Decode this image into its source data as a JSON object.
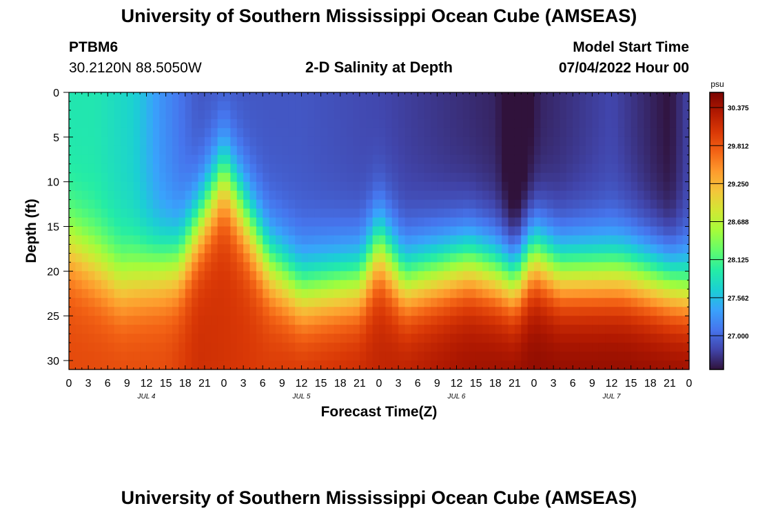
{
  "header": {
    "title": "University of Southern Mississippi Ocean Cube (AMSEAS)",
    "station_id": "PTBM6",
    "station_coords": "30.2120N  88.5050W",
    "plot_title": "2-D Salinity at Depth",
    "model_start_label": "Model Start Time",
    "model_start_value": "07/04/2022 Hour 00"
  },
  "footer": {
    "title": "University of Southern Mississippi Ocean Cube (AMSEAS)"
  },
  "chart_data": {
    "type": "heatmap",
    "title": "2-D Salinity at Depth",
    "xlabel": "Forecast Time(Z)",
    "ylabel": "Depth (ft)",
    "x_hours_range": [
      0,
      96
    ],
    "y_depth_range_ft": [
      0,
      31
    ],
    "x_tick_labels": [
      "0",
      "3",
      "6",
      "9",
      "12",
      "15",
      "18",
      "21",
      "0",
      "3",
      "6",
      "9",
      "12",
      "15",
      "18",
      "21",
      "0",
      "3",
      "6",
      "9",
      "12",
      "15",
      "18",
      "21",
      "0",
      "3",
      "6",
      "9",
      "12",
      "15",
      "18",
      "21",
      "0"
    ],
    "y_tick_labels": [
      "0",
      "5",
      "10",
      "15",
      "20",
      "25",
      "30"
    ],
    "day_labels": [
      {
        "label": "JUL 4",
        "hour": 12
      },
      {
        "label": "JUL 5",
        "hour": 36
      },
      {
        "label": "JUL 6",
        "hour": 60
      },
      {
        "label": "JUL 7",
        "hour": 84
      }
    ],
    "colorbar": {
      "unit": "psu",
      "min": 26.5,
      "max": 30.6,
      "tick_labels": [
        "30.375",
        "29.812",
        "29.250",
        "28.688",
        "28.125",
        "27.562",
        "27.000"
      ],
      "tick_values": [
        30.375,
        29.812,
        29.25,
        28.688,
        28.125,
        27.562,
        27.0
      ],
      "colors": [
        "#30123b",
        "#4145ab",
        "#4675ed",
        "#39a2fc",
        "#1bcfd4",
        "#24eca6",
        "#61fc6c",
        "#a4fc3b",
        "#d1e834",
        "#f3c63a",
        "#fe9b2d",
        "#f36315",
        "#d93806",
        "#b11901",
        "#7a0402"
      ]
    },
    "surface_salinity_psu": [
      {
        "hour": 0,
        "value": 27.9
      },
      {
        "hour": 4,
        "value": 27.9
      },
      {
        "hour": 10,
        "value": 27.7
      },
      {
        "hour": 14,
        "value": 27.3
      },
      {
        "hour": 20,
        "value": 26.9
      },
      {
        "hour": 36,
        "value": 26.9
      },
      {
        "hour": 48,
        "value": 26.8
      },
      {
        "hour": 66,
        "value": 26.6
      },
      {
        "hour": 69,
        "value": 26.3
      },
      {
        "hour": 73,
        "value": 26.6
      },
      {
        "hour": 84,
        "value": 26.8
      },
      {
        "hour": 93,
        "value": 26.5
      },
      {
        "hour": 96,
        "value": 26.8
      }
    ],
    "halocline_depth_ft": [
      {
        "hour": 0,
        "value": 17
      },
      {
        "hour": 8,
        "value": 21
      },
      {
        "hour": 17,
        "value": 19
      },
      {
        "hour": 24,
        "value": 9
      },
      {
        "hour": 31,
        "value": 19
      },
      {
        "hour": 36,
        "value": 22
      },
      {
        "hour": 45,
        "value": 21
      },
      {
        "hour": 48,
        "value": 17
      },
      {
        "hour": 52,
        "value": 21
      },
      {
        "hour": 57,
        "value": 20
      },
      {
        "hour": 62,
        "value": 19
      },
      {
        "hour": 66,
        "value": 20
      },
      {
        "hour": 69,
        "value": 21
      },
      {
        "hour": 72,
        "value": 18
      },
      {
        "hour": 76,
        "value": 20
      },
      {
        "hour": 86,
        "value": 20
      },
      {
        "hour": 96,
        "value": 22
      }
    ],
    "bottom_salinity_psu": [
      {
        "hour": 0,
        "value": 29.9
      },
      {
        "hour": 15,
        "value": 29.9
      },
      {
        "hour": 20,
        "value": 30.1
      },
      {
        "hour": 30,
        "value": 30.0
      },
      {
        "hour": 48,
        "value": 30.2
      },
      {
        "hour": 60,
        "value": 30.4
      },
      {
        "hour": 72,
        "value": 30.5
      },
      {
        "hour": 96,
        "value": 30.5
      }
    ]
  }
}
